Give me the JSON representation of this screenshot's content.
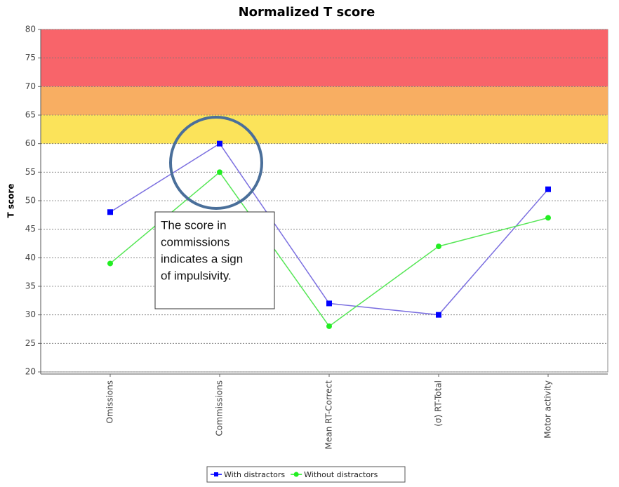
{
  "chart_data": {
    "type": "line",
    "title": "Normalized T score",
    "y_label": "T score",
    "categories": [
      "Omissions",
      "Commissions",
      "Mean RT-Correct",
      "(σ) RT-Total",
      "Motor activity"
    ],
    "series": [
      {
        "name": "With distractors",
        "color": "#0000ff",
        "line_color": "#7b6fe0",
        "values": [
          48,
          60,
          32,
          30,
          52
        ]
      },
      {
        "name": "Without distractors",
        "color": "#22ee22",
        "line_color": "#55e655",
        "values": [
          39,
          55,
          28,
          42,
          47
        ]
      }
    ],
    "ylim": [
      20,
      80
    ],
    "yticks": [
      20,
      25,
      30,
      35,
      40,
      45,
      50,
      55,
      60,
      65,
      70,
      75,
      80
    ],
    "grid": true,
    "bands": [
      {
        "from": 60,
        "to": 65,
        "color": "#fbe35a"
      },
      {
        "from": 65,
        "to": 70,
        "color": "#f8ae62"
      },
      {
        "from": 70,
        "to": 80,
        "color": "#f8646a"
      }
    ],
    "annotation": {
      "lines": [
        "The score in",
        "commissions",
        "indicates a sign",
        "of impulsivity."
      ]
    },
    "legend": "bottom"
  }
}
